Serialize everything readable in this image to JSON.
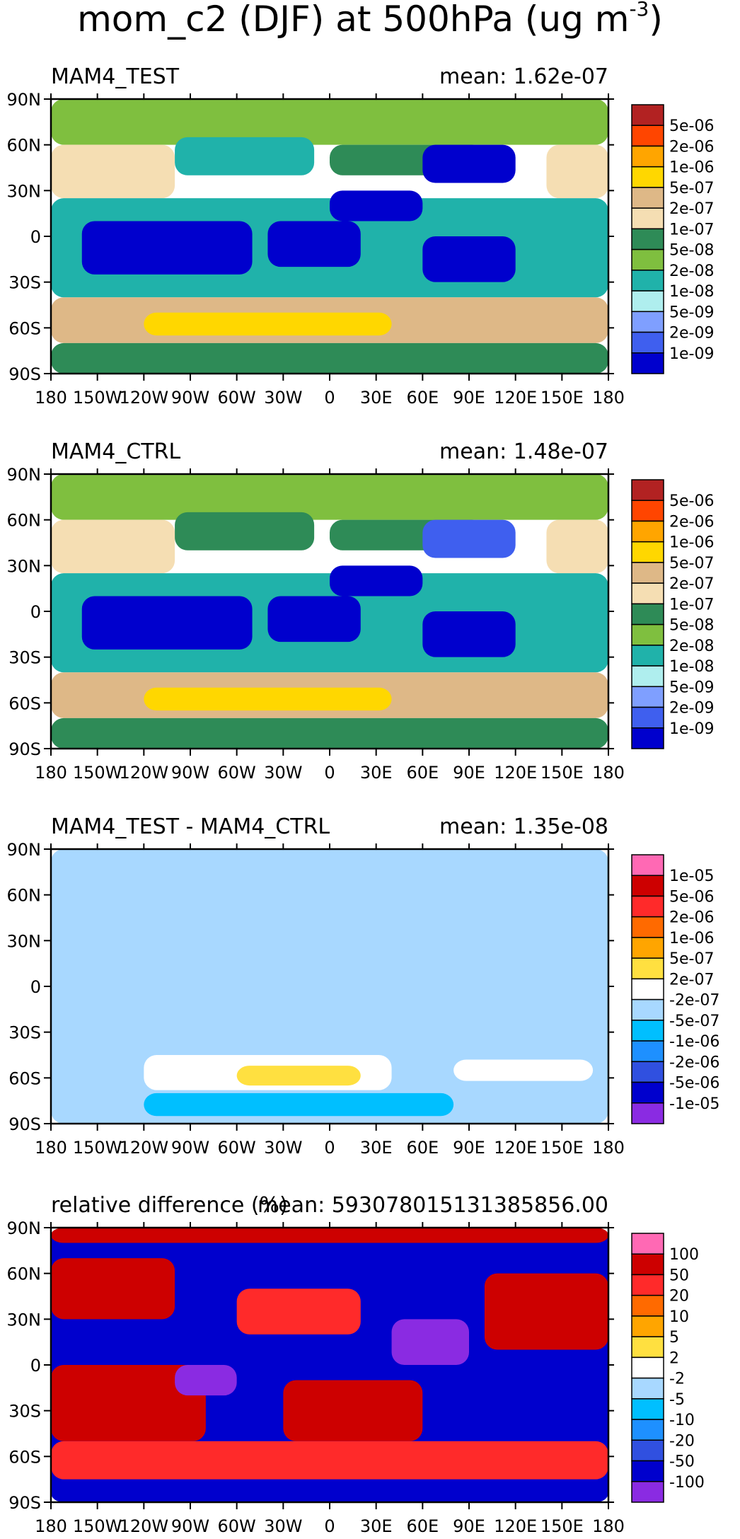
{
  "title": "mom_c2 (DJF) at 500hPa (ug m",
  "title_sup": "-3",
  "title_close": ")",
  "chart_data": [
    {
      "type": "heatmap",
      "title_left": "MAM4_TEST",
      "title_right": "mean: 1.62e-07",
      "x_ticks": [
        "180",
        "150W",
        "120W",
        "90W",
        "60W",
        "30W",
        "0",
        "30E",
        "60E",
        "90E",
        "120E",
        "150E",
        "180"
      ],
      "y_ticks": [
        "90N",
        "60N",
        "30N",
        "0",
        "30S",
        "60S",
        "90S"
      ],
      "xlim": [
        -180,
        180
      ],
      "ylim": [
        -90,
        90
      ],
      "colorbar_labels": [
        "5e-06",
        "2e-06",
        "1e-06",
        "5e-07",
        "2e-07",
        "1e-07",
        "5e-08",
        "2e-08",
        "1e-08",
        "5e-09",
        "2e-09",
        "1e-09"
      ],
      "colorbar_colors": [
        "#b22222",
        "#ff4500",
        "#ffa500",
        "#ffd700",
        "#deb887",
        "#f5deb3",
        "#2e8b57",
        "#7fbf3f",
        "#20b2aa",
        "#afeeee",
        "#7f9fff",
        "#3f5fef",
        "#0000cd"
      ],
      "regions": [
        {
          "lon": [
            -180,
            180
          ],
          "lat": [
            60,
            90
          ],
          "level": "5e-08"
        },
        {
          "lon": [
            -180,
            -100
          ],
          "lat": [
            25,
            60
          ],
          "level": "2e-07"
        },
        {
          "lon": [
            -100,
            -10
          ],
          "lat": [
            40,
            65
          ],
          "level": "2e-08"
        },
        {
          "lon": [
            0,
            100
          ],
          "lat": [
            40,
            60
          ],
          "level": "1e-07"
        },
        {
          "lon": [
            60,
            120
          ],
          "lat": [
            35,
            60
          ],
          "level": "1e-09"
        },
        {
          "lon": [
            140,
            180
          ],
          "lat": [
            25,
            60
          ],
          "level": "2e-07"
        },
        {
          "lon": [
            -180,
            180
          ],
          "lat": [
            -40,
            25
          ],
          "level": "2e-08"
        },
        {
          "lon": [
            -160,
            -50
          ],
          "lat": [
            -25,
            10
          ],
          "level": "1e-09"
        },
        {
          "lon": [
            -40,
            20
          ],
          "lat": [
            -20,
            10
          ],
          "level": "1e-09"
        },
        {
          "lon": [
            0,
            60
          ],
          "lat": [
            10,
            30
          ],
          "level": "1e-09"
        },
        {
          "lon": [
            60,
            120
          ],
          "lat": [
            -30,
            0
          ],
          "level": "1e-09"
        },
        {
          "lon": [
            -180,
            180
          ],
          "lat": [
            -70,
            -40
          ],
          "level": "5e-07"
        },
        {
          "lon": [
            -120,
            40
          ],
          "lat": [
            -65,
            -50
          ],
          "level": "1e-06"
        },
        {
          "lon": [
            -180,
            180
          ],
          "lat": [
            -90,
            -70
          ],
          "level": "1e-07"
        }
      ]
    },
    {
      "type": "heatmap",
      "title_left": "MAM4_CTRL",
      "title_right": "mean: 1.48e-07",
      "x_ticks": [
        "180",
        "150W",
        "120W",
        "90W",
        "60W",
        "30W",
        "0",
        "30E",
        "60E",
        "90E",
        "120E",
        "150E",
        "180"
      ],
      "y_ticks": [
        "90N",
        "60N",
        "30N",
        "0",
        "30S",
        "60S",
        "90S"
      ],
      "xlim": [
        -180,
        180
      ],
      "ylim": [
        -90,
        90
      ],
      "colorbar_labels": [
        "5e-06",
        "2e-06",
        "1e-06",
        "5e-07",
        "2e-07",
        "1e-07",
        "5e-08",
        "2e-08",
        "1e-08",
        "5e-09",
        "2e-09",
        "1e-09"
      ],
      "colorbar_colors": [
        "#b22222",
        "#ff4500",
        "#ffa500",
        "#ffd700",
        "#deb887",
        "#f5deb3",
        "#2e8b57",
        "#7fbf3f",
        "#20b2aa",
        "#afeeee",
        "#7f9fff",
        "#3f5fef",
        "#0000cd"
      ],
      "regions": [
        {
          "lon": [
            -180,
            180
          ],
          "lat": [
            60,
            90
          ],
          "level": "5e-08"
        },
        {
          "lon": [
            -180,
            -100
          ],
          "lat": [
            25,
            60
          ],
          "level": "2e-07"
        },
        {
          "lon": [
            -100,
            -10
          ],
          "lat": [
            40,
            65
          ],
          "level": "1e-07"
        },
        {
          "lon": [
            0,
            100
          ],
          "lat": [
            40,
            60
          ],
          "level": "1e-07"
        },
        {
          "lon": [
            60,
            120
          ],
          "lat": [
            35,
            60
          ],
          "level": "2e-09"
        },
        {
          "lon": [
            140,
            180
          ],
          "lat": [
            25,
            60
          ],
          "level": "2e-07"
        },
        {
          "lon": [
            -180,
            180
          ],
          "lat": [
            -40,
            25
          ],
          "level": "2e-08"
        },
        {
          "lon": [
            -160,
            -50
          ],
          "lat": [
            -25,
            10
          ],
          "level": "1e-09"
        },
        {
          "lon": [
            -40,
            20
          ],
          "lat": [
            -20,
            10
          ],
          "level": "1e-09"
        },
        {
          "lon": [
            0,
            60
          ],
          "lat": [
            10,
            30
          ],
          "level": "1e-09"
        },
        {
          "lon": [
            60,
            120
          ],
          "lat": [
            -30,
            0
          ],
          "level": "1e-09"
        },
        {
          "lon": [
            -180,
            180
          ],
          "lat": [
            -70,
            -40
          ],
          "level": "5e-07"
        },
        {
          "lon": [
            -120,
            40
          ],
          "lat": [
            -65,
            -50
          ],
          "level": "1e-06"
        },
        {
          "lon": [
            -180,
            180
          ],
          "lat": [
            -90,
            -70
          ],
          "level": "1e-07"
        }
      ]
    },
    {
      "type": "heatmap",
      "title_left": "MAM4_TEST - MAM4_CTRL",
      "title_right": "mean: 1.35e-08",
      "x_ticks": [
        "180",
        "150W",
        "120W",
        "90W",
        "60W",
        "30W",
        "0",
        "30E",
        "60E",
        "90E",
        "120E",
        "150E",
        "180"
      ],
      "y_ticks": [
        "90N",
        "60N",
        "30N",
        "0",
        "30S",
        "60S",
        "90S"
      ],
      "xlim": [
        -180,
        180
      ],
      "ylim": [
        -90,
        90
      ],
      "colorbar_labels": [
        "1e-05",
        "5e-06",
        "2e-06",
        "1e-06",
        "5e-07",
        "2e-07",
        "-2e-07",
        "-5e-07",
        "-1e-06",
        "-2e-06",
        "-5e-06",
        "-1e-05"
      ],
      "colorbar_colors": [
        "#ff69b4",
        "#cd0000",
        "#ff2a2a",
        "#ff6a00",
        "#ffa500",
        "#ffe040",
        "#ffffff",
        "#a8d8ff",
        "#00bfff",
        "#1e90ff",
        "#3050e0",
        "#0000cd",
        "#8a2be2"
      ],
      "regions": [
        {
          "lon": [
            -180,
            180
          ],
          "lat": [
            -90,
            90
          ],
          "level": "-2e-07"
        },
        {
          "lon": [
            -120,
            40
          ],
          "lat": [
            -68,
            -45
          ],
          "level": "2e-07"
        },
        {
          "lon": [
            -60,
            20
          ],
          "lat": [
            -65,
            -52
          ],
          "level": "5e-07"
        },
        {
          "lon": [
            80,
            170
          ],
          "lat": [
            -62,
            -48
          ],
          "level": "2e-07"
        },
        {
          "lon": [
            -120,
            80
          ],
          "lat": [
            -85,
            -70
          ],
          "level": "-5e-07"
        }
      ]
    },
    {
      "type": "heatmap",
      "title_left": "relative difference (%)",
      "title_right": "mean: 593078015131385856.00",
      "x_ticks": [
        "180",
        "150W",
        "120W",
        "90W",
        "60W",
        "30W",
        "0",
        "30E",
        "60E",
        "90E",
        "120E",
        "150E",
        "180"
      ],
      "y_ticks": [
        "90N",
        "60N",
        "30N",
        "0",
        "30S",
        "60S",
        "90S"
      ],
      "xlim": [
        -180,
        180
      ],
      "ylim": [
        -90,
        90
      ],
      "colorbar_labels": [
        "100",
        "50",
        "20",
        "10",
        "5",
        "2",
        "-2",
        "-5",
        "-10",
        "-20",
        "-50",
        "-100"
      ],
      "colorbar_colors": [
        "#ff69b4",
        "#cd0000",
        "#ff2a2a",
        "#ff6a00",
        "#ffa500",
        "#ffe040",
        "#ffffff",
        "#a8d8ff",
        "#00bfff",
        "#1e90ff",
        "#3050e0",
        "#0000cd",
        "#8a2be2"
      ],
      "regions": [
        {
          "lon": [
            -180,
            180
          ],
          "lat": [
            -90,
            90
          ],
          "level": "-50"
        },
        {
          "lon": [
            -180,
            180
          ],
          "lat": [
            80,
            90
          ],
          "level": "100"
        },
        {
          "lon": [
            -180,
            -100
          ],
          "lat": [
            30,
            70
          ],
          "level": "100"
        },
        {
          "lon": [
            -60,
            20
          ],
          "lat": [
            20,
            50
          ],
          "level": "50"
        },
        {
          "lon": [
            100,
            180
          ],
          "lat": [
            10,
            60
          ],
          "level": "100"
        },
        {
          "lon": [
            -180,
            -80
          ],
          "lat": [
            -50,
            0
          ],
          "level": "100"
        },
        {
          "lon": [
            -30,
            60
          ],
          "lat": [
            -50,
            -10
          ],
          "level": "100"
        },
        {
          "lon": [
            -180,
            180
          ],
          "lat": [
            -75,
            -50
          ],
          "level": "50"
        },
        {
          "lon": [
            -100,
            -60
          ],
          "lat": [
            -20,
            0
          ],
          "level": "-100"
        },
        {
          "lon": [
            40,
            90
          ],
          "lat": [
            0,
            30
          ],
          "level": "-100"
        },
        {
          "lon": [
            -180,
            180
          ],
          "lat": [
            -90,
            -78
          ],
          "level": "-50"
        }
      ]
    }
  ]
}
